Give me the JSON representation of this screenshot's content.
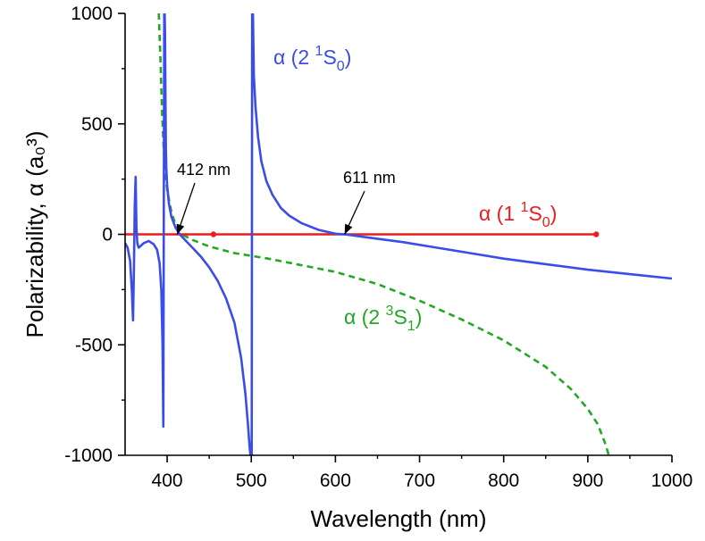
{
  "chart_data": {
    "type": "line",
    "title": "",
    "xlabel": "Wavelength (nm)",
    "ylabel": "Polarizability, α (a₀³)",
    "xlim": [
      350,
      1000
    ],
    "ylim": [
      -1000,
      1000
    ],
    "x_ticks": [
      "400",
      "500",
      "600",
      "700",
      "800",
      "900",
      "1000"
    ],
    "y_ticks": [
      "-1000",
      "-500",
      "0",
      "500",
      "1000"
    ],
    "grid": false,
    "colors": {
      "alpha_2_1S0": "#3a4de8",
      "alpha_1_1S0": "#ee1c1c",
      "alpha_2_3S1": "#22a822"
    },
    "series": [
      {
        "name": "α (2 1S0)",
        "label_parts": [
          "α (2 ",
          "1",
          "S",
          "0",
          ")"
        ],
        "style": "solid",
        "x": [
          350,
          353,
          356,
          358,
          359.5,
          360.5,
          361.5,
          362.5,
          363.5,
          364.5,
          366,
          368,
          372,
          378,
          384,
          388,
          391,
          393,
          394.5,
          395.5,
          396.5,
          397,
          397.5,
          398,
          398.5,
          399,
          400,
          402,
          405,
          410,
          415,
          420,
          430,
          440,
          450,
          460,
          470,
          480,
          488,
          493,
          496,
          498,
          499,
          499.5,
          500.5,
          501,
          502,
          503,
          505,
          508,
          512,
          518,
          525,
          535,
          545,
          560,
          580,
          600,
          611,
          640,
          680,
          720,
          760,
          800,
          850,
          900,
          950,
          1000
        ],
        "y": [
          -40,
          -60,
          -120,
          -250,
          -390,
          -150,
          130,
          260,
          30,
          -40,
          -60,
          -55,
          -40,
          -30,
          -45,
          -70,
          -130,
          -250,
          -500,
          -870,
          1000,
          1000,
          900,
          600,
          380,
          300,
          220,
          140,
          80,
          30,
          0,
          -20,
          -60,
          -100,
          -150,
          -210,
          -290,
          -400,
          -560,
          -720,
          -860,
          -960,
          -1000,
          -1000,
          -1000,
          1000,
          1000,
          720,
          580,
          440,
          330,
          240,
          180,
          120,
          85,
          50,
          20,
          3,
          0,
          -15,
          -35,
          -60,
          -85,
          -110,
          -135,
          -160,
          -180,
          -200
        ]
      },
      {
        "name": "α (1 1S0)",
        "label_parts": [
          "α (1 ",
          "1",
          "S",
          "0",
          ")"
        ],
        "style": "solid",
        "x": [
          350,
          910
        ],
        "y": [
          0,
          0
        ],
        "markers": [
          {
            "x": 455,
            "y": 0
          },
          {
            "x": 910,
            "y": 0
          }
        ]
      },
      {
        "name": "α (2 3S1)",
        "label_parts": [
          "α (2 ",
          "3",
          "S",
          "1",
          ")"
        ],
        "style": "dashed",
        "x": [
          390,
          392,
          394,
          396,
          398,
          400,
          405,
          410,
          415,
          420,
          430,
          450,
          480,
          520,
          560,
          600,
          650,
          700,
          750,
          800,
          850,
          880,
          900,
          912,
          920,
          925
        ],
        "y": [
          1000,
          800,
          550,
          380,
          270,
          200,
          100,
          45,
          15,
          -5,
          -25,
          -55,
          -85,
          -110,
          -140,
          -170,
          -225,
          -300,
          -385,
          -480,
          -600,
          -700,
          -790,
          -860,
          -940,
          -1000
        ]
      }
    ],
    "annotations": [
      {
        "text": "412 nm",
        "x": 412,
        "y": 0
      },
      {
        "text": "611 nm",
        "x": 611,
        "y": 0
      }
    ]
  }
}
